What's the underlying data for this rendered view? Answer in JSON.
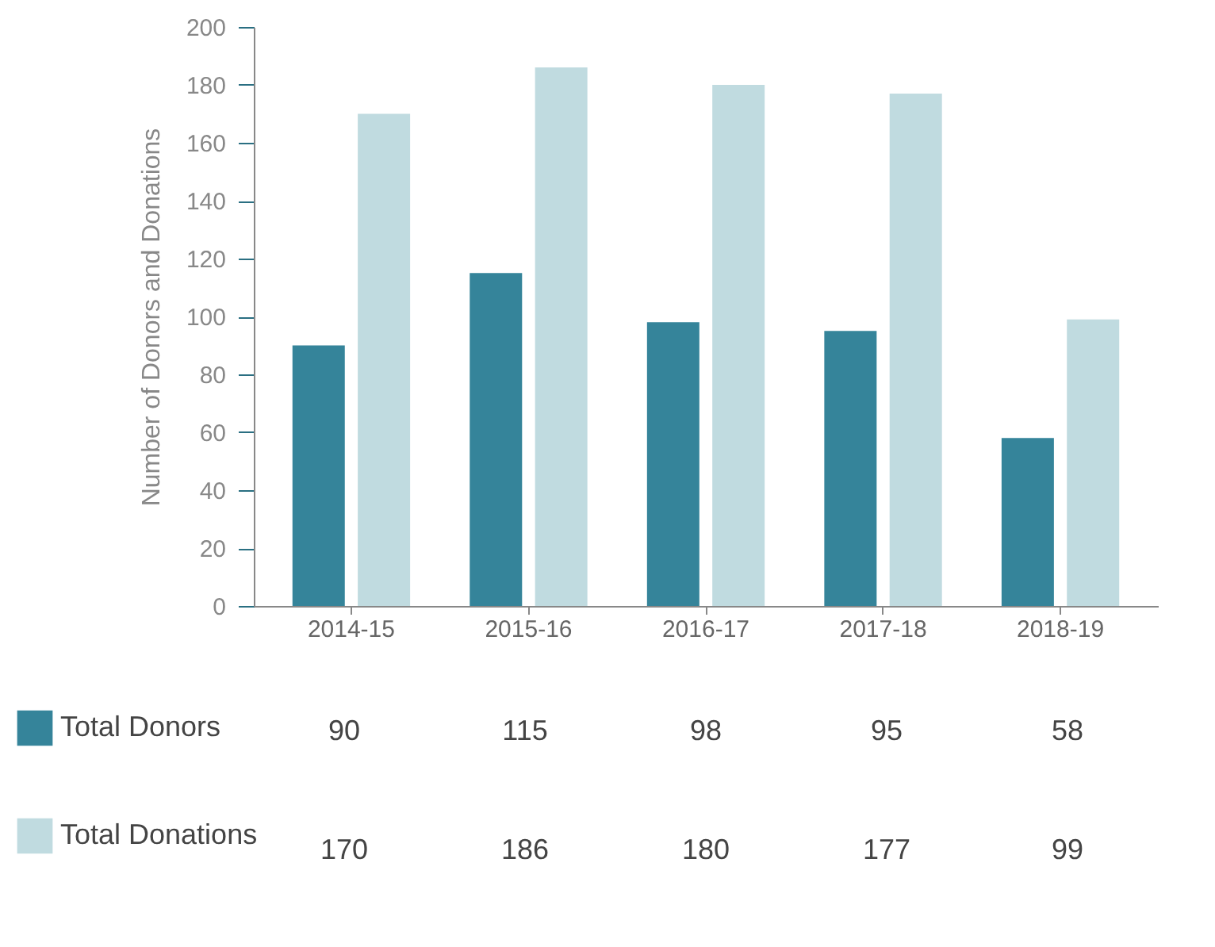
{
  "chart_data": {
    "type": "bar",
    "ylabel": "Number of Donors and Donations",
    "categories": [
      "2014-15",
      "2015-16",
      "2016-17",
      "2017-18",
      "2018-19"
    ],
    "series": [
      {
        "name": "Total Donors",
        "color": "#35849a",
        "values": [
          90,
          115,
          98,
          95,
          58
        ]
      },
      {
        "name": "Total Donations",
        "color": "#c0dbe0",
        "values": [
          170,
          186,
          180,
          177,
          99
        ]
      }
    ],
    "ylim": [
      0,
      200
    ],
    "yticks": [
      0,
      20,
      40,
      60,
      80,
      100,
      120,
      140,
      160,
      180,
      200
    ],
    "grid": false,
    "legend": "bottom",
    "data_labels": true
  }
}
